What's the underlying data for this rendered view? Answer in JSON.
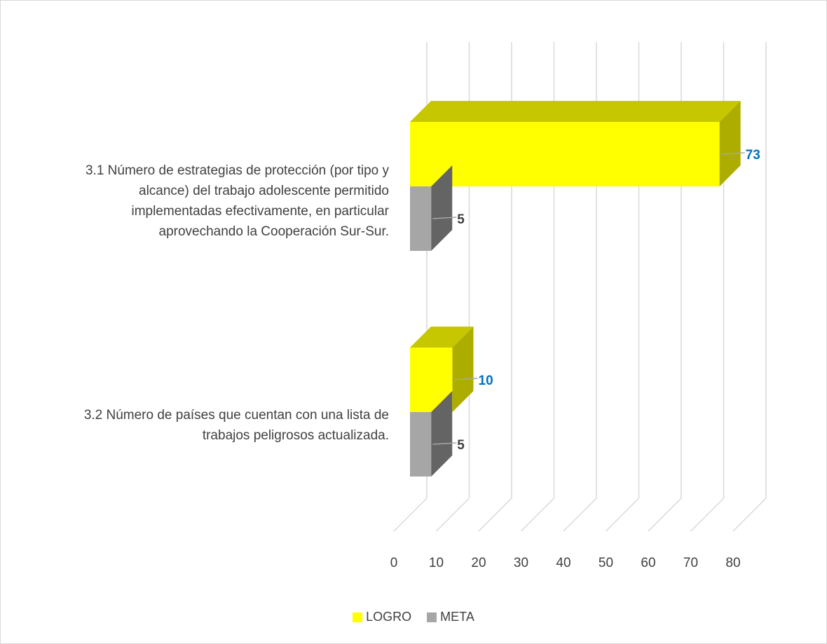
{
  "chart_data": {
    "type": "bar",
    "orientation": "horizontal",
    "three_d": true,
    "categories": [
      "3.1  Número de estrategias de protección (por tipo y alcance) del trabajo adolescente permitido implementadas efectivamente, en particular aprovechando la Cooperación Sur-Sur.",
      "3.2  Número de países que cuentan con una lista de trabajos peligrosos actualizada."
    ],
    "category_lines": [
      [
        "3.1  Número de estrategias de protección (por tipo y",
        "alcance) del trabajo adolescente permitido",
        "implementadas efectivamente, en particular",
        "aprovechando la Cooperación Sur-Sur."
      ],
      [
        "3.2  Número de países que cuentan con una lista de",
        "trabajos peligrosos actualizada."
      ]
    ],
    "series": [
      {
        "name": "LOGRO",
        "values": [
          73,
          10
        ],
        "color": "#ffff00",
        "label_color": "#0070c0"
      },
      {
        "name": "META",
        "values": [
          5,
          5
        ],
        "color": "#a6a6a6",
        "label_color": "#404040"
      }
    ],
    "xlim": [
      0,
      80
    ],
    "ticks": [
      "0",
      "10",
      "20",
      "30",
      "40",
      "50",
      "60",
      "70",
      "80"
    ],
    "grid": true,
    "legend_position": "bottom"
  }
}
